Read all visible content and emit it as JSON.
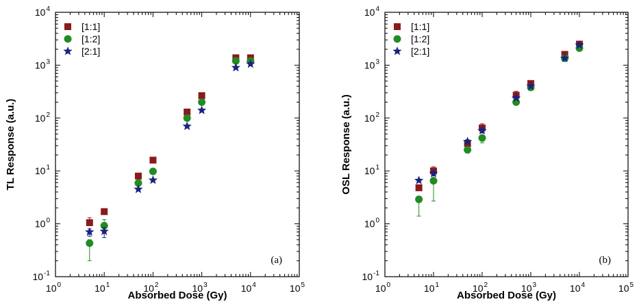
{
  "chart_data": [
    {
      "type": "scatter",
      "panel_label": "(a)",
      "xlabel": "Absorbed Dose (Gy)",
      "ylabel": "TL Response (a.u.)",
      "xscale": "log",
      "yscale": "log",
      "xlim": [
        1,
        100000
      ],
      "ylim": [
        0.1,
        10000
      ],
      "x_tick_labels": [
        {
          "base": "10",
          "exp": "0"
        },
        {
          "base": "10",
          "exp": "1"
        },
        {
          "base": "10",
          "exp": "2"
        },
        {
          "base": "10",
          "exp": "3"
        },
        {
          "base": "10",
          "exp": "4"
        },
        {
          "base": "10",
          "exp": "5"
        }
      ],
      "y_tick_labels": [
        {
          "base": "10",
          "exp": "-1"
        },
        {
          "base": "10",
          "exp": "0"
        },
        {
          "base": "10",
          "exp": "1"
        },
        {
          "base": "10",
          "exp": "2"
        },
        {
          "base": "10",
          "exp": "3"
        },
        {
          "base": "10",
          "exp": "4"
        }
      ],
      "grid": false,
      "legend_position": "top-left",
      "series": [
        {
          "name": "[1:1]",
          "marker": "square",
          "color": "#8B1A1A",
          "x": [
            5,
            10,
            50,
            100,
            500,
            1000,
            5000,
            10000
          ],
          "y": [
            1.05,
            1.7,
            8,
            16,
            130,
            265,
            1380,
            1380
          ],
          "err_hi": [
            1.3,
            1.9,
            8.5,
            16.5,
            135,
            275,
            1420,
            1420
          ],
          "err_lo": [
            1.05,
            1.55,
            8,
            16,
            130,
            265,
            1380,
            1380
          ]
        },
        {
          "name": "[1:2]",
          "marker": "circle",
          "color": "#228B22",
          "x": [
            5,
            10,
            50,
            100,
            500,
            1000,
            5000,
            10000
          ],
          "y": [
            0.43,
            0.92,
            5.9,
            9.8,
            100,
            200,
            1200,
            1200
          ],
          "err_hi": [
            0.5,
            1.2,
            6.2,
            10.2,
            105,
            210,
            1240,
            1240
          ],
          "err_lo": [
            0.2,
            0.75,
            5.6,
            9.5,
            95,
            190,
            1160,
            1160
          ]
        },
        {
          "name": "[2:1]",
          "marker": "star",
          "color": "#1A237E",
          "x": [
            5,
            10,
            50,
            100,
            500,
            1000,
            5000,
            10000
          ],
          "y": [
            0.7,
            0.72,
            4.5,
            6.7,
            70,
            140,
            900,
            1050
          ],
          "err_hi": [
            0.8,
            0.85,
            4.7,
            7,
            73,
            145,
            930,
            1080
          ],
          "err_lo": [
            0.58,
            0.55,
            4.3,
            6.4,
            67,
            135,
            870,
            1020
          ]
        }
      ]
    },
    {
      "type": "scatter",
      "panel_label": "(b)",
      "xlabel": "Absorbed Dose (Gy)",
      "ylabel": "OSL Response (a.u.)",
      "xscale": "log",
      "yscale": "log",
      "xlim": [
        1,
        100000
      ],
      "ylim": [
        0.1,
        10000
      ],
      "x_tick_labels": [
        {
          "base": "10",
          "exp": "0"
        },
        {
          "base": "10",
          "exp": "1"
        },
        {
          "base": "10",
          "exp": "2"
        },
        {
          "base": "10",
          "exp": "3"
        },
        {
          "base": "10",
          "exp": "4"
        },
        {
          "base": "10",
          "exp": "5"
        }
      ],
      "y_tick_labels": [
        {
          "base": "10",
          "exp": "-1"
        },
        {
          "base": "10",
          "exp": "0"
        },
        {
          "base": "10",
          "exp": "1"
        },
        {
          "base": "10",
          "exp": "2"
        },
        {
          "base": "10",
          "exp": "3"
        },
        {
          "base": "10",
          "exp": "4"
        }
      ],
      "grid": false,
      "legend_position": "top-left",
      "series": [
        {
          "name": "[1:1]",
          "marker": "square",
          "color": "#8B1A1A",
          "x": [
            5,
            10,
            50,
            100,
            500,
            1000,
            5000,
            10000
          ],
          "y": [
            4.8,
            10,
            33,
            65,
            270,
            450,
            1600,
            2500
          ],
          "err_hi": [
            5.3,
            12,
            36,
            78,
            320,
            500,
            1700,
            2700
          ],
          "err_lo": [
            4.3,
            8,
            30,
            55,
            230,
            410,
            1500,
            2350
          ]
        },
        {
          "name": "[1:2]",
          "marker": "circle",
          "color": "#228B22",
          "x": [
            5,
            10,
            50,
            100,
            500,
            1000,
            5000,
            10000
          ],
          "y": [
            2.9,
            6.5,
            25,
            42,
            200,
            380,
            1350,
            2100
          ],
          "err_hi": [
            3.3,
            7.5,
            28,
            47,
            215,
            405,
            1420,
            2200
          ],
          "err_lo": [
            1.4,
            2.7,
            22,
            34,
            185,
            355,
            1280,
            2000
          ]
        },
        {
          "name": "[2:1]",
          "marker": "star",
          "color": "#1A237E",
          "x": [
            5,
            10,
            50,
            100,
            500,
            1000,
            5000,
            10000
          ],
          "y": [
            6.6,
            9,
            36,
            58,
            240,
            400,
            1350,
            2400
          ],
          "err_hi": [
            7,
            9.8,
            39,
            64,
            260,
            430,
            1430,
            2550
          ],
          "err_lo": [
            6.2,
            8.2,
            33,
            52,
            220,
            370,
            1270,
            2250
          ]
        }
      ]
    }
  ]
}
